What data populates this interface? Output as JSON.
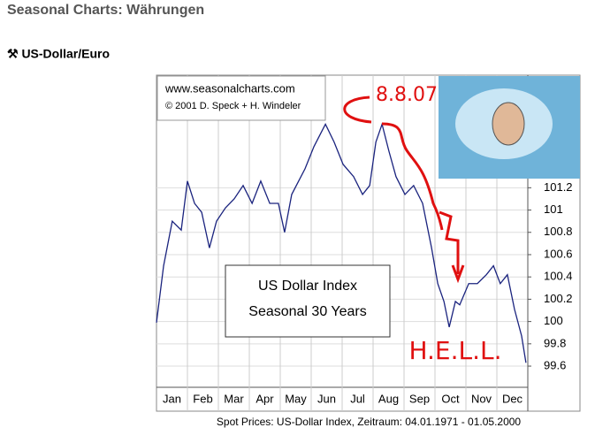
{
  "header": {
    "title": "Seasonal Charts: Währungen",
    "subtitle": "⚒ US-Dollar/Euro"
  },
  "chart_data": {
    "type": "line",
    "source_lines": [
      "www.seasonalcharts.com",
      "© 2001 D. Speck + H. Windeler"
    ],
    "annotations": [
      "US Dollar Index",
      "Seasonal 30 Years"
    ],
    "handwritten": [
      "8.8.07",
      "H.E.L.L."
    ],
    "caption": "Spot Prices: US-Dollar Index, Zeitraum: 04.01.1971 - 01.05.2000",
    "categories": [
      "Jan",
      "Feb",
      "Mar",
      "Apr",
      "May",
      "Jun",
      "Jul",
      "Aug",
      "Sep",
      "Oct",
      "Nov",
      "Dec"
    ],
    "xlim": [
      0,
      12
    ],
    "ylim": [
      99.41,
      102.21
    ],
    "yticks": [
      99.6,
      99.8,
      100,
      100.2,
      100.4,
      100.6,
      100.8,
      101,
      101.2
    ],
    "grid": true,
    "series": [
      {
        "color": "#1a237e",
        "x": [
          0,
          0.23,
          0.51,
          0.8,
          1.0,
          1.23,
          1.46,
          1.71,
          1.94,
          2.23,
          2.51,
          2.8,
          3.09,
          3.37,
          3.66,
          3.94,
          4.14,
          4.37,
          4.8,
          5.09,
          5.46,
          5.74,
          6.03,
          6.37,
          6.66,
          6.89,
          7.09,
          7.29,
          7.51,
          7.74,
          8.03,
          8.31,
          8.6,
          8.89,
          9.09,
          9.29,
          9.46,
          9.66,
          9.8,
          10.09,
          10.37,
          10.66,
          10.89,
          11.11,
          11.34,
          11.57,
          11.8,
          11.94
        ],
        "values": [
          99.99,
          100.5,
          100.9,
          100.82,
          101.26,
          101.06,
          100.98,
          100.66,
          100.9,
          101.02,
          101.1,
          101.22,
          101.06,
          101.26,
          101.06,
          101.06,
          100.8,
          101.14,
          101.37,
          101.57,
          101.77,
          101.61,
          101.41,
          101.3,
          101.14,
          101.22,
          101.61,
          101.77,
          101.53,
          101.3,
          101.14,
          101.22,
          101.06,
          100.66,
          100.34,
          100.18,
          99.95,
          100.18,
          100.15,
          100.34,
          100.34,
          100.42,
          100.5,
          100.34,
          100.42,
          100.11,
          99.87,
          99.63
        ]
      }
    ]
  }
}
